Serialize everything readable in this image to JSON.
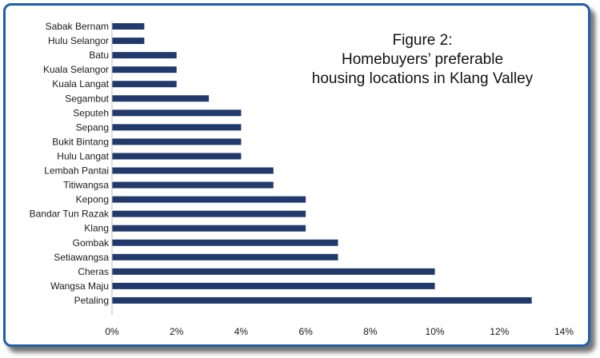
{
  "chart_data": {
    "type": "bar",
    "orientation": "horizontal",
    "title_lines": [
      "Figure 2:",
      "Homebuyers’ preferable",
      "housing locations in Klang Valley"
    ],
    "categories": [
      "Sabak Bernam",
      "Hulu Selangor",
      "Batu",
      "Kuala Selangor",
      "Kuala Langat",
      "Segambut",
      "Seputeh",
      "Sepang",
      "Bukit Bintang",
      "Hulu Langat",
      "Lembah Pantai",
      "Titiwangsa",
      "Kepong",
      "Bandar Tun Razak",
      "Klang",
      "Gombak",
      "Setiawangsa",
      "Cheras",
      "Wangsa Maju",
      "Petaling"
    ],
    "values": [
      1,
      1,
      2,
      2,
      2,
      3,
      4,
      4,
      4,
      4,
      5,
      5,
      6,
      6,
      6,
      7,
      7,
      10,
      10,
      13
    ],
    "x_ticks": [
      "0%",
      "2%",
      "4%",
      "6%",
      "8%",
      "10%",
      "12%",
      "14%"
    ],
    "xlim": [
      0,
      14
    ],
    "unit": "%",
    "grid": false,
    "legend": "none",
    "bar_color": "#223a6b",
    "frame_color": "#1f5fa8"
  }
}
